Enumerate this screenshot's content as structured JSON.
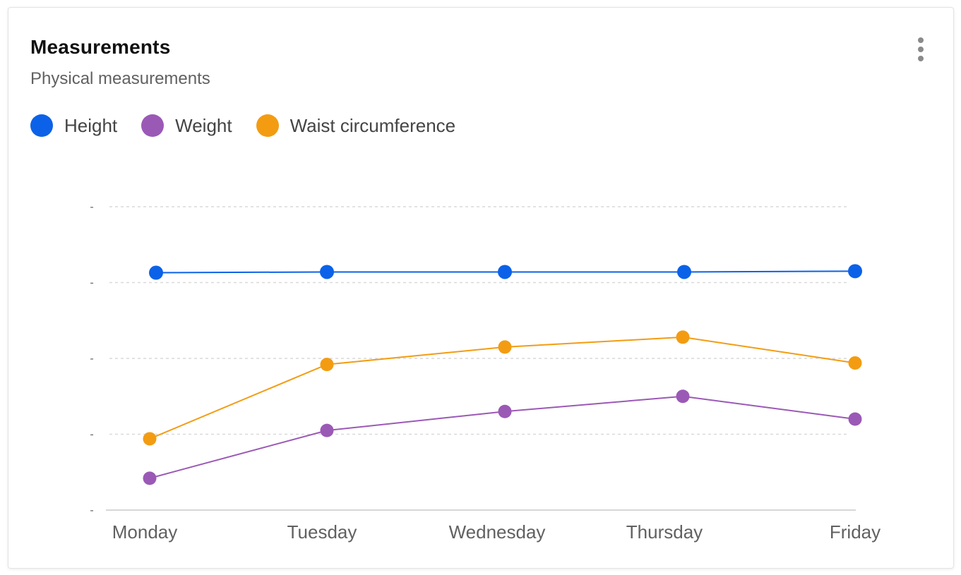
{
  "card": {
    "title": "Measurements",
    "subtitle": "Physical measurements",
    "menu_icon": "more-vertical-icon"
  },
  "legend": [
    {
      "label": "Height",
      "color": "#0b62e8"
    },
    {
      "label": "Weight",
      "color": "#9b59b6"
    },
    {
      "label": "Waist circumference",
      "color": "#f39c12"
    }
  ],
  "chart_data": {
    "type": "line",
    "title": "Measurements",
    "subtitle": "Physical measurements",
    "categories": [
      "Monday",
      "Tuesday",
      "Wednesday",
      "Thursday",
      "Friday"
    ],
    "y_tick_labels": [
      "-",
      "-",
      "-",
      "-",
      "-"
    ],
    "ylim": [
      0,
      4
    ],
    "grid": true,
    "legend_position": "top-left",
    "series": [
      {
        "name": "Height",
        "color": "#0b62e8",
        "values": [
          3.13,
          3.14,
          3.14,
          3.14,
          3.15
        ]
      },
      {
        "name": "Weight",
        "color": "#9b59b6",
        "values": [
          0.42,
          1.05,
          1.3,
          1.5,
          1.2
        ]
      },
      {
        "name": "Waist circumference",
        "color": "#f39c12",
        "values": [
          0.94,
          1.92,
          2.15,
          2.28,
          1.94
        ]
      }
    ]
  }
}
